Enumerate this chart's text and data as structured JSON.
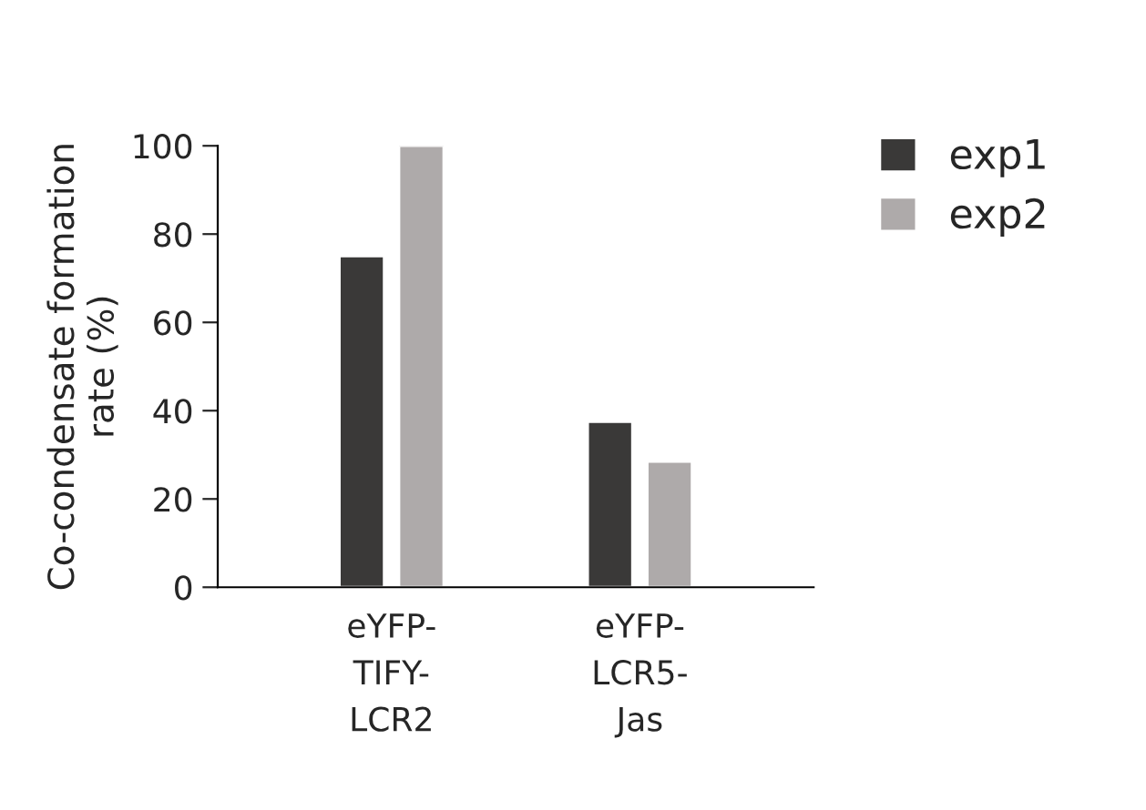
{
  "chart_data": {
    "type": "bar",
    "ylabel": "Co-condensate formation\nrate (%)",
    "categories": [
      "eYFP-\nTIFY-\nLCR2",
      "eYFP-\nLCR5-\nJas"
    ],
    "series": [
      {
        "name": "exp1",
        "color": "#3a3938",
        "values": [
          75,
          37.5
        ]
      },
      {
        "name": "exp2",
        "color": "#aeaaaa",
        "values": [
          100,
          28.5
        ]
      }
    ],
    "ylim": [
      0,
      100
    ],
    "yticks": [
      0,
      20,
      40,
      60,
      80,
      100
    ],
    "grid": false,
    "legend": "top right"
  }
}
